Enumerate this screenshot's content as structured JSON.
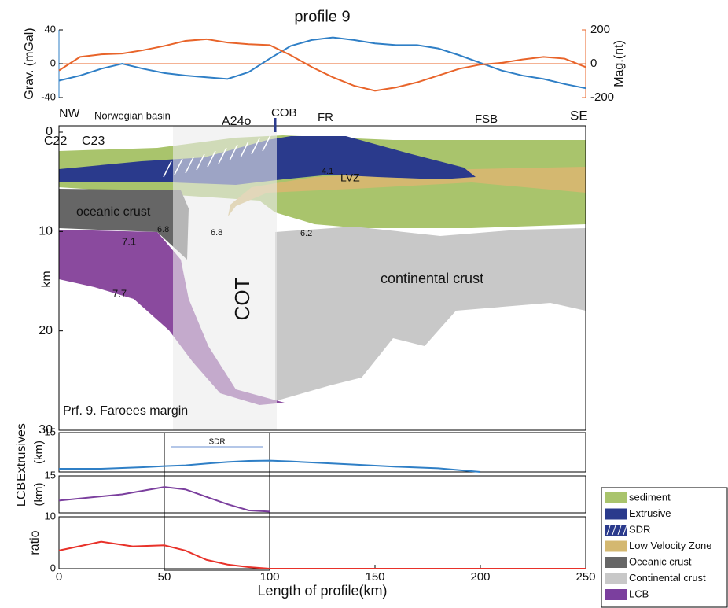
{
  "chart_data": [
    {
      "type": "line",
      "title": "profile 9",
      "y_label": "Grav. (mGal)",
      "y2_label": "Mag.(nt)",
      "xlim": [
        0,
        250
      ],
      "ylim": [
        -40,
        40
      ],
      "yticks": [
        -40,
        0,
        40
      ],
      "y2lim": [
        -200,
        200
      ],
      "y2ticks": [
        -200,
        0,
        200
      ],
      "x": [
        0,
        10,
        20,
        30,
        40,
        50,
        60,
        70,
        80,
        90,
        100,
        110,
        120,
        130,
        140,
        150,
        160,
        170,
        180,
        190,
        200,
        210,
        220,
        230,
        240,
        250
      ],
      "series": [
        {
          "color": "#2f7fc6",
          "values": [
            -20,
            -14,
            -6,
            0,
            -6,
            -11,
            -14,
            -16,
            -18,
            -10,
            6,
            21,
            28,
            31,
            28,
            24,
            22,
            22,
            18,
            10,
            1,
            -8,
            -14,
            -18,
            -24,
            -29
          ]
        },
        {
          "color": "#e8642a",
          "values": [
            -40,
            40,
            55,
            60,
            80,
            105,
            135,
            145,
            125,
            115,
            110,
            50,
            -20,
            -80,
            -130,
            -160,
            -140,
            -110,
            -70,
            -30,
            -5,
            5,
            25,
            40,
            30,
            -20
          ],
          "axis": "y2"
        }
      ]
    },
    {
      "type": "section",
      "xlim": [
        0,
        250
      ],
      "ylim": [
        0,
        30
      ],
      "yticks": [
        0,
        10,
        20,
        30
      ],
      "y_label": "km",
      "y_inverted": true,
      "labels": [
        "NW",
        "Norwegian basin",
        "A24o",
        "COB",
        "FR",
        "FSB",
        "SE",
        "C22",
        "C23",
        "oceanic crust",
        "6.8",
        "6.8",
        "6.2",
        "7.1",
        "7.7",
        "4.1",
        "LVZ",
        "continental crust",
        "COT",
        "Prf. 9. Faroees margin"
      ]
    },
    {
      "type": "line",
      "y_label": "Extrusives",
      "y_unit": "(km)",
      "xlim": [
        0,
        250
      ],
      "ylim": [
        0,
        15
      ],
      "yticks": [
        15
      ],
      "x": [
        0,
        20,
        40,
        50,
        60,
        70,
        80,
        90,
        100,
        110,
        120,
        140,
        160,
        180,
        200
      ],
      "series": [
        {
          "color": "#2f7fc6",
          "values": [
            1.2,
            1.2,
            1.8,
            2.2,
            2.5,
            3.2,
            3.8,
            4.2,
            4.3,
            4.0,
            3.6,
            2.8,
            2.0,
            1.4,
            0
          ]
        }
      ],
      "annotation": "SDR"
    },
    {
      "type": "line",
      "y_label": "LCB",
      "y_unit": "(km)",
      "xlim": [
        0,
        250
      ],
      "ylim": [
        0,
        15
      ],
      "yticks": [
        15
      ],
      "x": [
        0,
        30,
        50,
        60,
        70,
        80,
        90,
        100
      ],
      "series": [
        {
          "color": "#7b3f9e",
          "values": [
            5,
            7.5,
            10.5,
            9.5,
            6.5,
            3.5,
            1,
            0.5
          ]
        }
      ]
    },
    {
      "type": "line",
      "y_label": "ratio",
      "x_label": "Length of profile(km)",
      "xlim": [
        0,
        250
      ],
      "ylim": [
        0,
        10
      ],
      "yticks": [
        0,
        10
      ],
      "xticks": [
        0,
        50,
        100,
        150,
        200,
        250
      ],
      "x": [
        0,
        20,
        35,
        50,
        60,
        70,
        80,
        90,
        100,
        250
      ],
      "series": [
        {
          "color": "#e8322a",
          "values": [
            3.5,
            5.2,
            4.3,
            4.5,
            3.5,
            1.7,
            0.8,
            0.3,
            0,
            0
          ]
        }
      ]
    }
  ],
  "legend": [
    {
      "label": "sediment",
      "color": "#a9c46c"
    },
    {
      "label": "Extrusive",
      "color": "#2a3a8c"
    },
    {
      "label": "SDR",
      "color": "#2a3a8c"
    },
    {
      "label": "Low Velocity Zone",
      "color": "#d4b870"
    },
    {
      "label": "Oceanic crust",
      "color": "#666666"
    },
    {
      "label": "Continental crust",
      "color": "#c8c8c8"
    },
    {
      "label": "LCB",
      "color": "#7b3f9e"
    }
  ]
}
